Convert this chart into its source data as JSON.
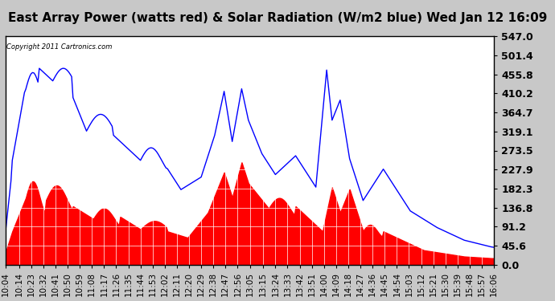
{
  "title": "East Array Power (watts red) & Solar Radiation (W/m2 blue) Wed Jan 12 16:09",
  "copyright": "Copyright 2011 Cartronics.com",
  "ylim": [
    0.0,
    547.0
  ],
  "yticks": [
    0.0,
    45.6,
    91.2,
    136.8,
    182.3,
    227.9,
    273.5,
    319.1,
    364.7,
    410.2,
    455.8,
    501.4,
    547.0
  ],
  "bg_color": "#e8e8e8",
  "plot_bg": "#ffffff",
  "red_color": "#ff0000",
  "blue_color": "#0000ff",
  "title_bg": "#d0d0d0",
  "grid_color": "#ffffff",
  "x_label_color": "#000000",
  "title_fontsize": 11,
  "tick_fontsize": 7.5
}
